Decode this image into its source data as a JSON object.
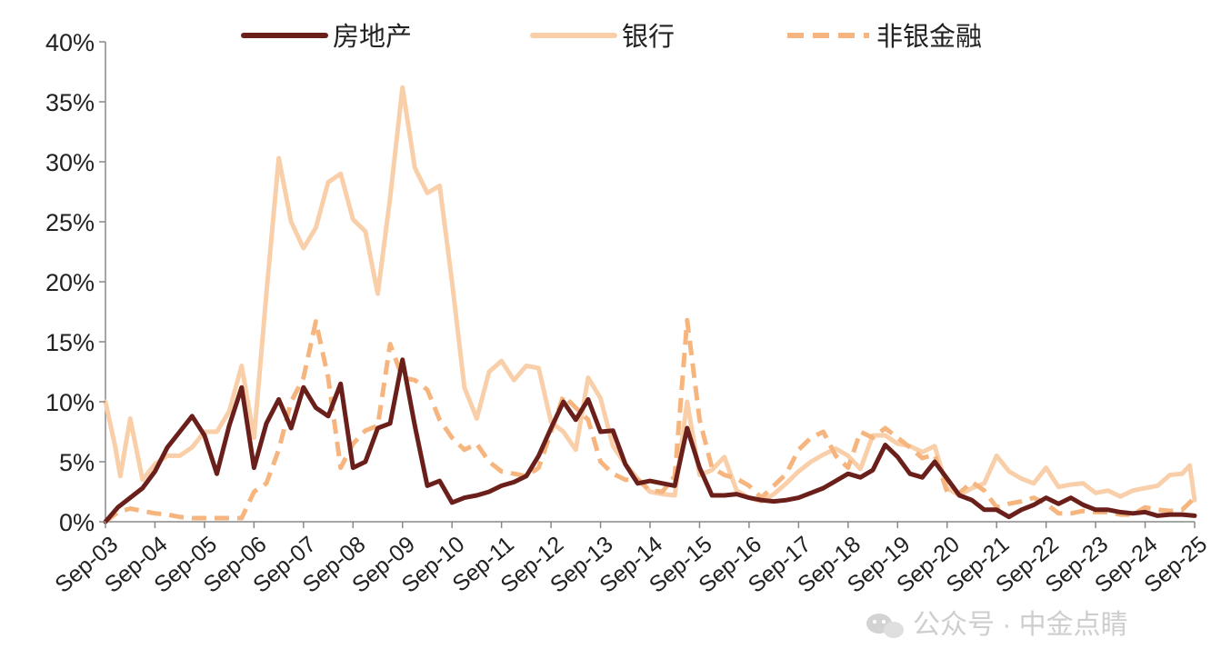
{
  "chart_data": {
    "type": "line",
    "title": "",
    "xlabel": "",
    "ylabel": "",
    "ylim": [
      0,
      40
    ],
    "yticks": [
      "0%",
      "5%",
      "10%",
      "15%",
      "20%",
      "25%",
      "30%",
      "35%",
      "40%"
    ],
    "ytick_values": [
      0,
      5,
      10,
      15,
      20,
      25,
      30,
      35,
      40
    ],
    "xticks": [
      "Sep-03",
      "Sep-04",
      "Sep-05",
      "Sep-06",
      "Sep-07",
      "Sep-08",
      "Sep-09",
      "Sep-10",
      "Sep-11",
      "Sep-12",
      "Sep-13",
      "Sep-14",
      "Sep-15",
      "Sep-16",
      "Sep-17",
      "Sep-18",
      "Sep-19",
      "Sep-20",
      "Sep-21",
      "Sep-22",
      "Sep-23",
      "Sep-24",
      "Sep-25"
    ],
    "x_range": [
      2003.75,
      2025.75
    ],
    "grid": false,
    "legend_position": "top",
    "series": [
      {
        "name": "房地产",
        "color": "#6b1f1a",
        "style": "solid",
        "points": [
          [
            2003.75,
            0
          ],
          [
            2004.0,
            1.2
          ],
          [
            2004.25,
            2.0
          ],
          [
            2004.5,
            2.8
          ],
          [
            2004.75,
            4.2
          ],
          [
            2005.0,
            6.2
          ],
          [
            2005.25,
            7.5
          ],
          [
            2005.5,
            8.8
          ],
          [
            2005.75,
            7.2
          ],
          [
            2006.0,
            4.0
          ],
          [
            2006.25,
            8.0
          ],
          [
            2006.5,
            11.2
          ],
          [
            2006.75,
            4.5
          ],
          [
            2007.0,
            8.2
          ],
          [
            2007.25,
            10.2
          ],
          [
            2007.5,
            7.8
          ],
          [
            2007.75,
            11.2
          ],
          [
            2008.0,
            9.5
          ],
          [
            2008.25,
            8.8
          ],
          [
            2008.5,
            11.5
          ],
          [
            2008.75,
            4.5
          ],
          [
            2009.0,
            5.0
          ],
          [
            2009.25,
            7.8
          ],
          [
            2009.5,
            8.2
          ],
          [
            2009.75,
            13.5
          ],
          [
            2010.0,
            8.0
          ],
          [
            2010.25,
            3.0
          ],
          [
            2010.5,
            3.4
          ],
          [
            2010.75,
            1.6
          ],
          [
            2011.0,
            2.0
          ],
          [
            2011.25,
            2.2
          ],
          [
            2011.5,
            2.5
          ],
          [
            2011.75,
            3.0
          ],
          [
            2012.0,
            3.3
          ],
          [
            2012.25,
            3.8
          ],
          [
            2012.5,
            5.5
          ],
          [
            2012.75,
            7.8
          ],
          [
            2013.0,
            10.0
          ],
          [
            2013.25,
            8.5
          ],
          [
            2013.5,
            10.2
          ],
          [
            2013.75,
            7.5
          ],
          [
            2014.0,
            7.6
          ],
          [
            2014.25,
            4.8
          ],
          [
            2014.5,
            3.2
          ],
          [
            2014.75,
            3.4
          ],
          [
            2015.0,
            3.2
          ],
          [
            2015.25,
            3.0
          ],
          [
            2015.5,
            7.8
          ],
          [
            2015.75,
            4.5
          ],
          [
            2016.0,
            2.2
          ],
          [
            2016.25,
            2.2
          ],
          [
            2016.5,
            2.3
          ],
          [
            2016.75,
            2.0
          ],
          [
            2017.0,
            1.8
          ],
          [
            2017.25,
            1.7
          ],
          [
            2017.5,
            1.8
          ],
          [
            2017.75,
            2.0
          ],
          [
            2018.0,
            2.4
          ],
          [
            2018.25,
            2.8
          ],
          [
            2018.5,
            3.4
          ],
          [
            2018.75,
            4.0
          ],
          [
            2019.0,
            3.7
          ],
          [
            2019.25,
            4.3
          ],
          [
            2019.5,
            6.4
          ],
          [
            2019.75,
            5.4
          ],
          [
            2020.0,
            4.0
          ],
          [
            2020.25,
            3.7
          ],
          [
            2020.5,
            5.0
          ],
          [
            2020.75,
            3.6
          ],
          [
            2021.0,
            2.2
          ],
          [
            2021.25,
            1.8
          ],
          [
            2021.5,
            1.0
          ],
          [
            2021.75,
            1.0
          ],
          [
            2022.0,
            0.4
          ],
          [
            2022.25,
            1.0
          ],
          [
            2022.5,
            1.4
          ],
          [
            2022.75,
            2.0
          ],
          [
            2023.0,
            1.5
          ],
          [
            2023.25,
            2.0
          ],
          [
            2023.5,
            1.4
          ],
          [
            2023.75,
            1.0
          ],
          [
            2024.0,
            1.0
          ],
          [
            2024.25,
            0.8
          ],
          [
            2024.5,
            0.7
          ],
          [
            2024.75,
            0.8
          ],
          [
            2025.0,
            0.5
          ],
          [
            2025.25,
            0.6
          ],
          [
            2025.5,
            0.6
          ],
          [
            2025.75,
            0.5
          ]
        ]
      },
      {
        "name": "银行",
        "color": "#f9cfa9",
        "style": "solid",
        "points": [
          [
            2003.75,
            10.0
          ],
          [
            2003.95,
            6.2
          ],
          [
            2004.05,
            3.8
          ],
          [
            2004.25,
            8.6
          ],
          [
            2004.5,
            3.5
          ],
          [
            2004.75,
            4.8
          ],
          [
            2005.0,
            5.5
          ],
          [
            2005.25,
            5.5
          ],
          [
            2005.5,
            6.2
          ],
          [
            2005.75,
            7.5
          ],
          [
            2006.0,
            7.5
          ],
          [
            2006.25,
            9.2
          ],
          [
            2006.5,
            13.0
          ],
          [
            2006.75,
            7.0
          ],
          [
            2007.0,
            19.0
          ],
          [
            2007.25,
            30.3
          ],
          [
            2007.5,
            25.0
          ],
          [
            2007.75,
            22.8
          ],
          [
            2008.0,
            24.5
          ],
          [
            2008.25,
            28.3
          ],
          [
            2008.5,
            29.0
          ],
          [
            2008.75,
            25.2
          ],
          [
            2009.0,
            24.2
          ],
          [
            2009.25,
            19.0
          ],
          [
            2009.5,
            27.0
          ],
          [
            2009.75,
            36.2
          ],
          [
            2010.0,
            29.5
          ],
          [
            2010.25,
            27.4
          ],
          [
            2010.5,
            28.0
          ],
          [
            2010.75,
            20.0
          ],
          [
            2011.0,
            11.2
          ],
          [
            2011.25,
            8.6
          ],
          [
            2011.5,
            12.5
          ],
          [
            2011.75,
            13.4
          ],
          [
            2012.0,
            11.8
          ],
          [
            2012.25,
            13.0
          ],
          [
            2012.5,
            12.8
          ],
          [
            2012.75,
            8.3
          ],
          [
            2013.0,
            7.5
          ],
          [
            2013.25,
            6.0
          ],
          [
            2013.5,
            12.0
          ],
          [
            2013.75,
            10.3
          ],
          [
            2014.0,
            6.3
          ],
          [
            2014.25,
            4.8
          ],
          [
            2014.5,
            3.6
          ],
          [
            2014.75,
            2.5
          ],
          [
            2015.0,
            2.3
          ],
          [
            2015.25,
            2.2
          ],
          [
            2015.5,
            10.0
          ],
          [
            2015.75,
            3.9
          ],
          [
            2016.0,
            4.3
          ],
          [
            2016.25,
            5.4
          ],
          [
            2016.5,
            2.6
          ],
          [
            2016.75,
            2.0
          ],
          [
            2017.0,
            1.7
          ],
          [
            2017.25,
            2.3
          ],
          [
            2017.5,
            3.2
          ],
          [
            2017.75,
            4.2
          ],
          [
            2018.0,
            5.0
          ],
          [
            2018.25,
            5.6
          ],
          [
            2018.5,
            6.1
          ],
          [
            2018.75,
            5.5
          ],
          [
            2019.0,
            4.4
          ],
          [
            2019.25,
            7.2
          ],
          [
            2019.5,
            7.2
          ],
          [
            2019.75,
            6.5
          ],
          [
            2020.0,
            6.3
          ],
          [
            2020.25,
            5.8
          ],
          [
            2020.5,
            6.3
          ],
          [
            2020.75,
            2.8
          ],
          [
            2021.0,
            2.2
          ],
          [
            2021.25,
            2.8
          ],
          [
            2021.5,
            3.2
          ],
          [
            2021.75,
            5.5
          ],
          [
            2022.0,
            4.2
          ],
          [
            2022.25,
            3.6
          ],
          [
            2022.5,
            3.2
          ],
          [
            2022.75,
            4.5
          ],
          [
            2023.0,
            2.9
          ],
          [
            2023.25,
            3.1
          ],
          [
            2023.5,
            3.2
          ],
          [
            2023.75,
            2.4
          ],
          [
            2024.0,
            2.6
          ],
          [
            2024.25,
            2.1
          ],
          [
            2024.5,
            2.6
          ],
          [
            2024.75,
            2.8
          ],
          [
            2025.0,
            3.0
          ],
          [
            2025.25,
            3.9
          ],
          [
            2025.5,
            4.0
          ],
          [
            2025.65,
            4.7
          ],
          [
            2025.75,
            1.8
          ]
        ]
      },
      {
        "name": "非银金融",
        "color": "#f6b57e",
        "style": "dashed",
        "points": [
          [
            2003.75,
            0
          ],
          [
            2004.0,
            0.8
          ],
          [
            2004.25,
            1.1
          ],
          [
            2004.5,
            0.9
          ],
          [
            2004.75,
            0.7
          ],
          [
            2005.0,
            0.6
          ],
          [
            2005.25,
            0.4
          ],
          [
            2005.5,
            0.3
          ],
          [
            2005.75,
            0.3
          ],
          [
            2006.0,
            0.3
          ],
          [
            2006.25,
            0.3
          ],
          [
            2006.5,
            0.3
          ],
          [
            2006.75,
            2.5
          ],
          [
            2007.0,
            3.2
          ],
          [
            2007.25,
            6.0
          ],
          [
            2007.5,
            10.0
          ],
          [
            2007.75,
            12.0
          ],
          [
            2008.0,
            16.7
          ],
          [
            2008.25,
            12.0
          ],
          [
            2008.5,
            4.5
          ],
          [
            2008.75,
            6.5
          ],
          [
            2009.0,
            7.6
          ],
          [
            2009.25,
            8.0
          ],
          [
            2009.5,
            14.8
          ],
          [
            2009.75,
            12.0
          ],
          [
            2010.0,
            11.8
          ],
          [
            2010.25,
            11.0
          ],
          [
            2010.5,
            8.5
          ],
          [
            2010.75,
            7.0
          ],
          [
            2011.0,
            6.0
          ],
          [
            2011.25,
            6.5
          ],
          [
            2011.5,
            5.0
          ],
          [
            2011.75,
            4.2
          ],
          [
            2012.0,
            4.0
          ],
          [
            2012.25,
            3.8
          ],
          [
            2012.5,
            4.5
          ],
          [
            2012.75,
            7.5
          ],
          [
            2013.0,
            10.5
          ],
          [
            2013.25,
            9.5
          ],
          [
            2013.5,
            8.5
          ],
          [
            2013.75,
            5.0
          ],
          [
            2014.0,
            4.0
          ],
          [
            2014.25,
            3.5
          ],
          [
            2014.5,
            3.5
          ],
          [
            2014.75,
            2.6
          ],
          [
            2015.0,
            2.5
          ],
          [
            2015.25,
            3.8
          ],
          [
            2015.5,
            16.8
          ],
          [
            2015.75,
            8.5
          ],
          [
            2016.0,
            4.5
          ],
          [
            2016.25,
            3.9
          ],
          [
            2016.5,
            3.6
          ],
          [
            2016.75,
            3.0
          ],
          [
            2017.0,
            2.0
          ],
          [
            2017.25,
            3.0
          ],
          [
            2017.5,
            4.0
          ],
          [
            2017.75,
            6.0
          ],
          [
            2018.0,
            7.0
          ],
          [
            2018.25,
            7.5
          ],
          [
            2018.5,
            5.5
          ],
          [
            2018.75,
            4.5
          ],
          [
            2019.0,
            7.5
          ],
          [
            2019.25,
            7.0
          ],
          [
            2019.5,
            7.8
          ],
          [
            2019.75,
            7.0
          ],
          [
            2020.0,
            6.2
          ],
          [
            2020.25,
            5.3
          ],
          [
            2020.5,
            5.6
          ],
          [
            2020.75,
            2.5
          ],
          [
            2021.0,
            2.4
          ],
          [
            2021.25,
            3.3
          ],
          [
            2021.5,
            2.6
          ],
          [
            2021.75,
            1.2
          ],
          [
            2022.0,
            1.5
          ],
          [
            2022.25,
            1.7
          ],
          [
            2022.5,
            2.0
          ],
          [
            2022.75,
            1.5
          ],
          [
            2023.0,
            0.7
          ],
          [
            2023.25,
            0.7
          ],
          [
            2023.5,
            0.9
          ],
          [
            2023.75,
            0.8
          ],
          [
            2024.0,
            0.8
          ],
          [
            2024.25,
            0.6
          ],
          [
            2024.5,
            0.6
          ],
          [
            2024.75,
            1.2
          ],
          [
            2025.0,
            1.0
          ],
          [
            2025.25,
            0.9
          ],
          [
            2025.5,
            1.0
          ],
          [
            2025.75,
            2.0
          ]
        ]
      }
    ]
  },
  "watermark": {
    "text": "公众号 · 中金点睛",
    "icon": "wechat-icon"
  }
}
